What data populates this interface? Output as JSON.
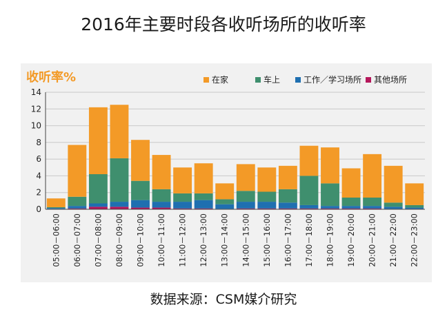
{
  "title": "2016年主要时段各收听场所的收听率",
  "source": "数据来源：CSM媒介研究",
  "chart_data": {
    "type": "bar",
    "stacked": true,
    "ylabel": "收听率%",
    "ylim": [
      0,
      14
    ],
    "yticks": [
      0,
      2,
      4,
      6,
      8,
      10,
      12,
      14
    ],
    "grid": true,
    "legend_position": "top-right",
    "categories": [
      "05:00－06:00",
      "06:00－07:00",
      "07:00－08:00",
      "08:00－09:00",
      "09:00－10:00",
      "10:00－11:00",
      "11:00－12:00",
      "12:00－13:00",
      "13:00－14:00",
      "14:00－15:00",
      "15:00－16:00",
      "16:00－17:00",
      "17:00－18:00",
      "18:00－19:00",
      "19:00－20:00",
      "20:00－21:00",
      "21:00－22:00",
      "22:00－23:00"
    ],
    "series": [
      {
        "name": "其他场所",
        "color": "#b5175b",
        "values": [
          0.05,
          0.1,
          0.3,
          0.3,
          0.2,
          0.2,
          0.1,
          0.1,
          0.05,
          0.1,
          0.1,
          0.1,
          0.1,
          0.1,
          0.1,
          0.1,
          0.05,
          0.05
        ]
      },
      {
        "name": "工作／学习场所",
        "color": "#1f6fb0",
        "values": [
          0.1,
          0.3,
          0.4,
          0.6,
          0.9,
          0.7,
          0.8,
          1.0,
          0.55,
          0.8,
          0.8,
          0.7,
          0.4,
          0.3,
          0.3,
          0.3,
          0.25,
          0.15
        ]
      },
      {
        "name": "车上",
        "color": "#3f8f6e",
        "values": [
          0.1,
          1.1,
          3.5,
          5.2,
          2.3,
          1.5,
          1.0,
          0.8,
          0.6,
          1.3,
          1.2,
          1.6,
          3.5,
          2.7,
          1.0,
          1.0,
          0.5,
          0.3
        ]
      },
      {
        "name": "在家",
        "color": "#f39a27",
        "values": [
          1.05,
          6.2,
          8.0,
          6.4,
          4.9,
          4.1,
          3.1,
          3.6,
          1.9,
          3.2,
          2.9,
          2.8,
          3.6,
          4.3,
          3.5,
          5.2,
          4.4,
          2.6
        ]
      }
    ]
  }
}
